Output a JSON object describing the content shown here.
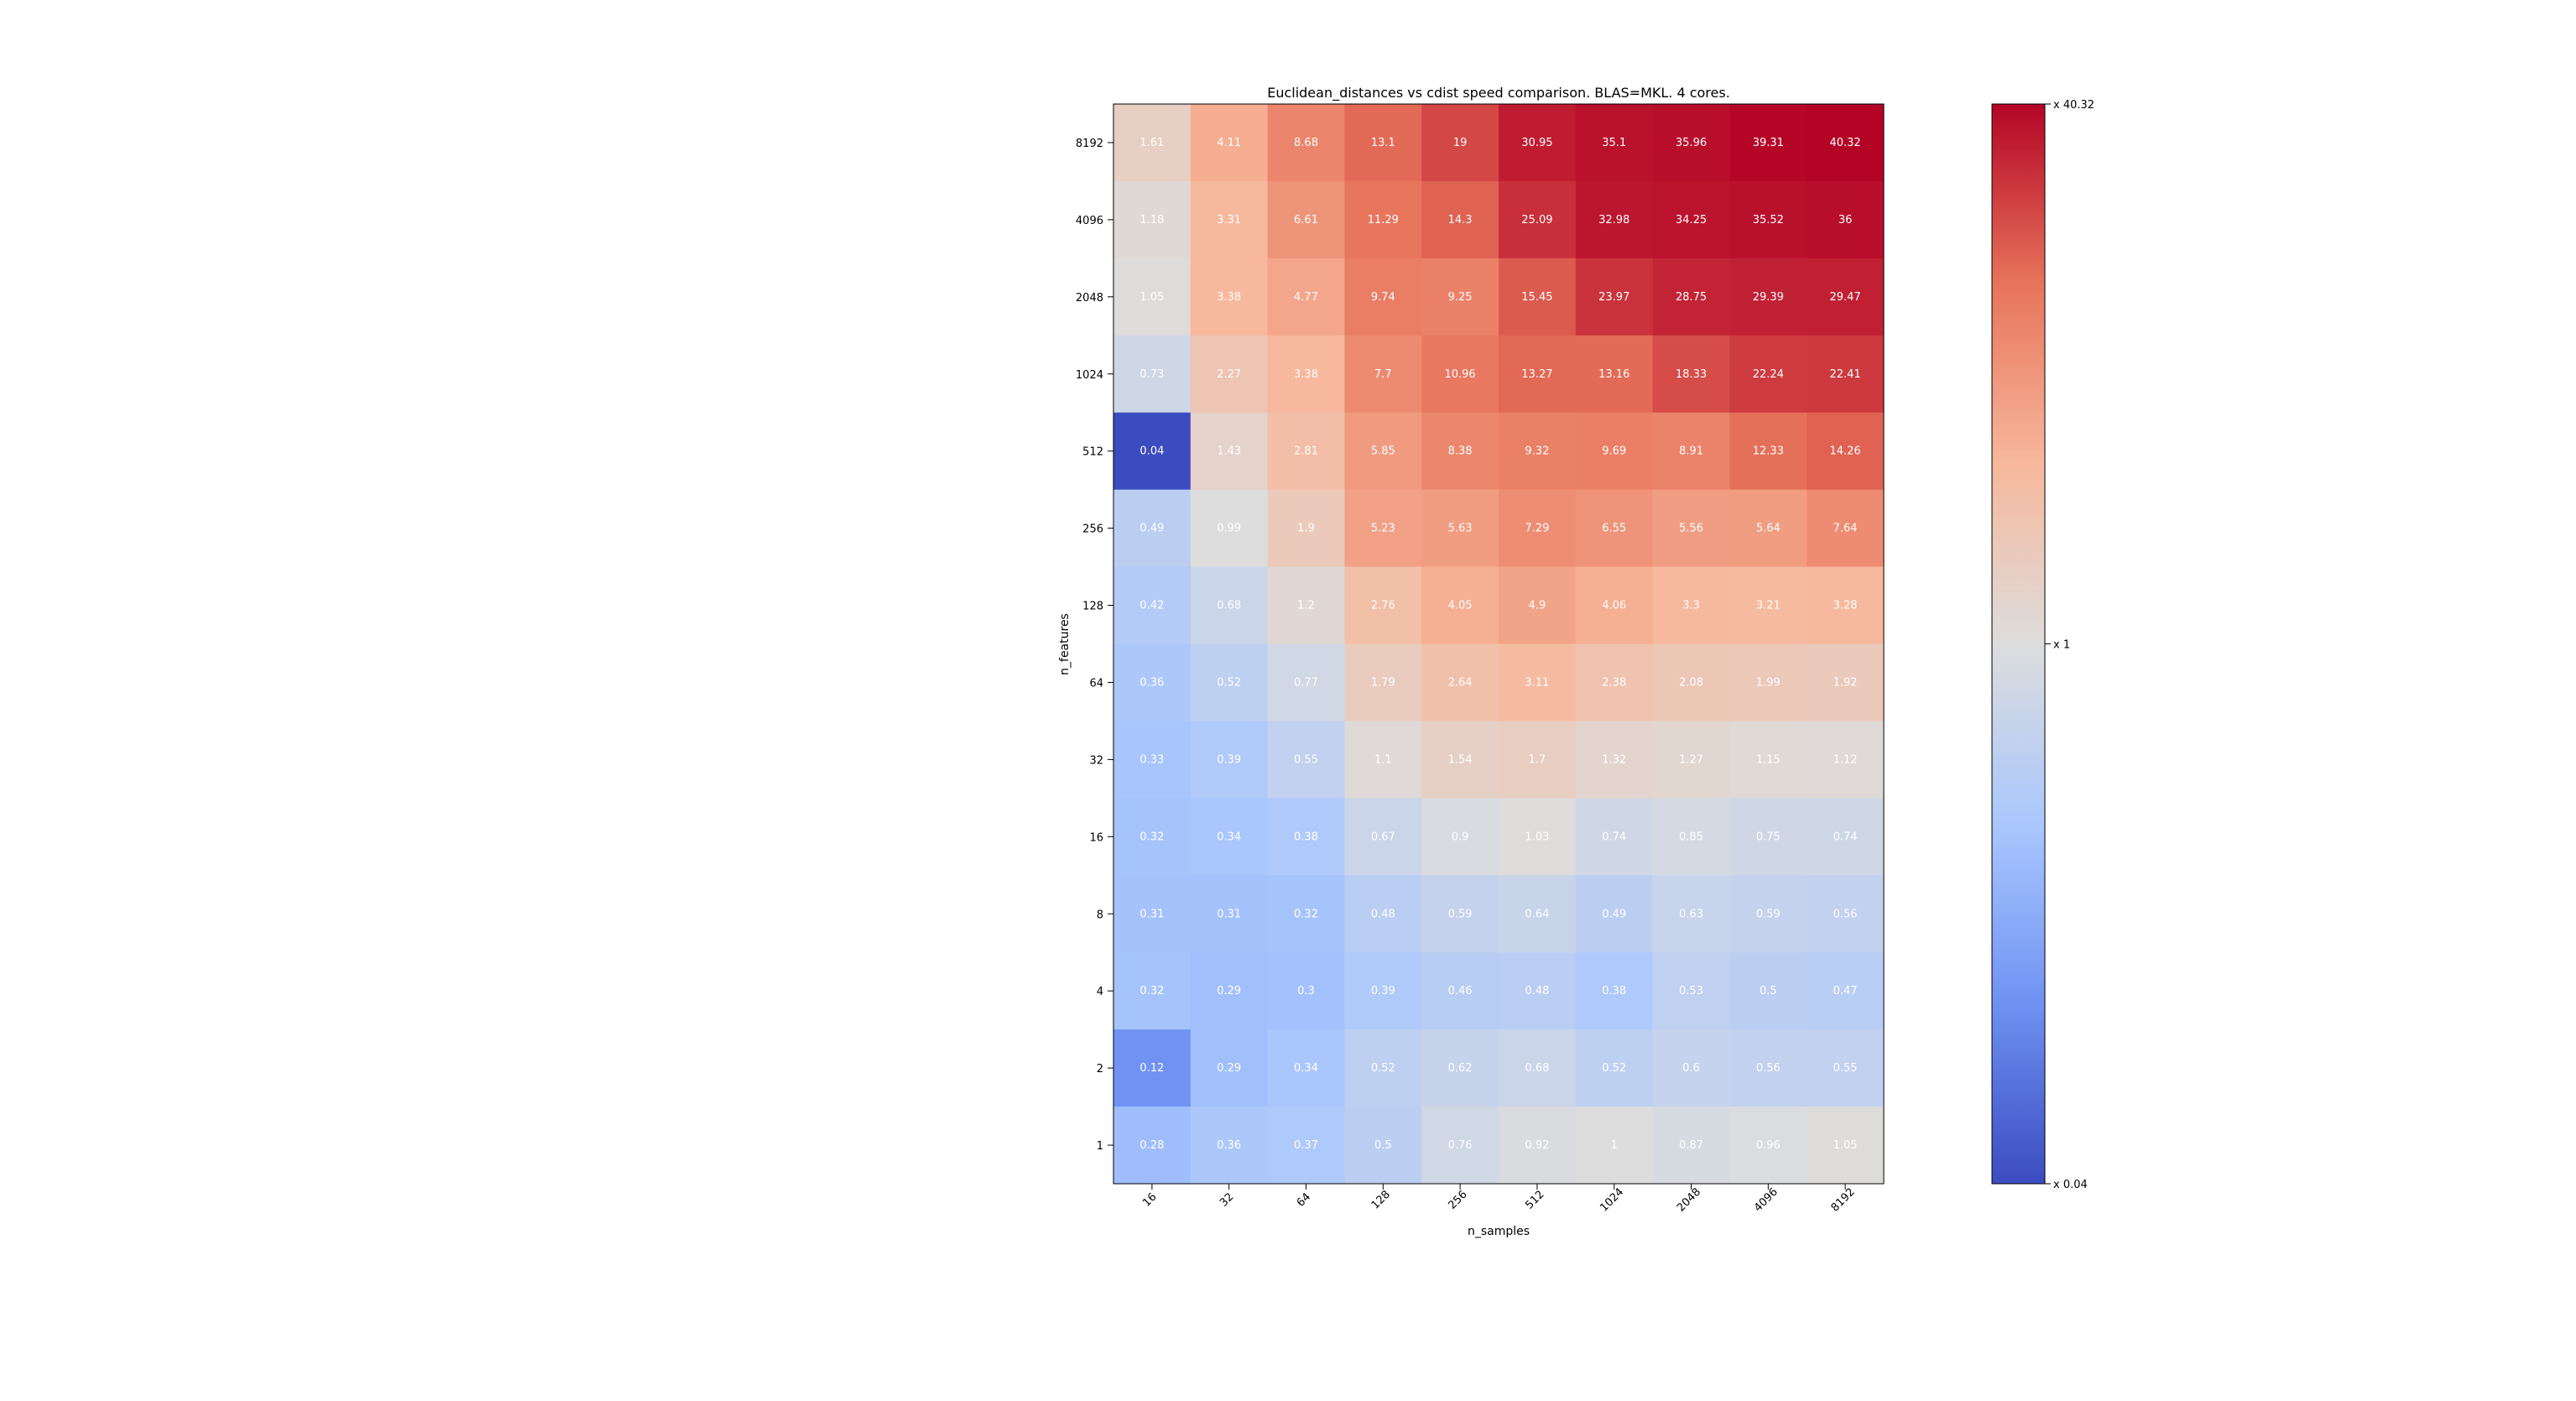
{
  "chart_data": {
    "type": "heatmap",
    "title": "Euclidean_distances vs cdist speed comparison. BLAS=MKL. 4 cores.",
    "xlabel": "n_samples",
    "ylabel": "n_features",
    "x_categories": [
      "16",
      "32",
      "64",
      "128",
      "256",
      "512",
      "1024",
      "2048",
      "4096",
      "8192"
    ],
    "y_categories": [
      "8192",
      "4096",
      "2048",
      "1024",
      "512",
      "256",
      "128",
      "64",
      "32",
      "16",
      "8",
      "4",
      "2",
      "1"
    ],
    "values": [
      [
        1.61,
        4.11,
        8.68,
        13.1,
        19.0,
        30.95,
        35.1,
        35.96,
        39.31,
        40.32
      ],
      [
        1.18,
        3.31,
        6.61,
        11.29,
        14.3,
        25.09,
        32.98,
        34.25,
        35.52,
        36.0
      ],
      [
        1.05,
        3.38,
        4.77,
        9.74,
        9.25,
        15.45,
        23.97,
        28.75,
        29.39,
        29.47
      ],
      [
        0.73,
        2.27,
        3.38,
        7.7,
        10.96,
        13.27,
        13.16,
        18.33,
        22.24,
        22.41
      ],
      [
        0.04,
        1.43,
        2.81,
        5.85,
        8.38,
        9.32,
        9.69,
        8.91,
        12.33,
        14.26
      ],
      [
        0.49,
        0.99,
        1.9,
        5.23,
        5.63,
        7.29,
        6.55,
        5.56,
        5.64,
        7.64
      ],
      [
        0.42,
        0.68,
        1.2,
        2.76,
        4.05,
        4.9,
        4.06,
        3.3,
        3.21,
        3.28
      ],
      [
        0.36,
        0.52,
        0.77,
        1.79,
        2.64,
        3.11,
        2.38,
        2.08,
        1.99,
        1.92
      ],
      [
        0.33,
        0.39,
        0.55,
        1.1,
        1.54,
        1.7,
        1.32,
        1.27,
        1.15,
        1.12
      ],
      [
        0.32,
        0.34,
        0.38,
        0.67,
        0.9,
        1.03,
        0.74,
        0.85,
        0.75,
        0.74
      ],
      [
        0.31,
        0.31,
        0.32,
        0.48,
        0.59,
        0.64,
        0.49,
        0.63,
        0.59,
        0.56
      ],
      [
        0.32,
        0.29,
        0.3,
        0.39,
        0.46,
        0.48,
        0.38,
        0.53,
        0.5,
        0.47
      ],
      [
        0.12,
        0.29,
        0.34,
        0.52,
        0.62,
        0.68,
        0.52,
        0.6,
        0.56,
        0.55
      ],
      [
        0.28,
        0.36,
        0.37,
        0.5,
        0.76,
        0.92,
        1.0,
        0.87,
        0.96,
        1.05
      ]
    ],
    "scale": "log",
    "vmin": 0.04,
    "vmax": 40.32,
    "colormap": "coolwarm",
    "colormap_stops": [
      "#3b4cc0",
      "#6f92f3",
      "#aac7fd",
      "#dddddd",
      "#f7b89c",
      "#e7745b",
      "#b40426"
    ],
    "colorbar": {
      "tick_labels": [
        "x 40.32",
        "x 1",
        "x 0.04"
      ],
      "tick_values": [
        40.32,
        1,
        0.04
      ]
    },
    "grid": false
  }
}
